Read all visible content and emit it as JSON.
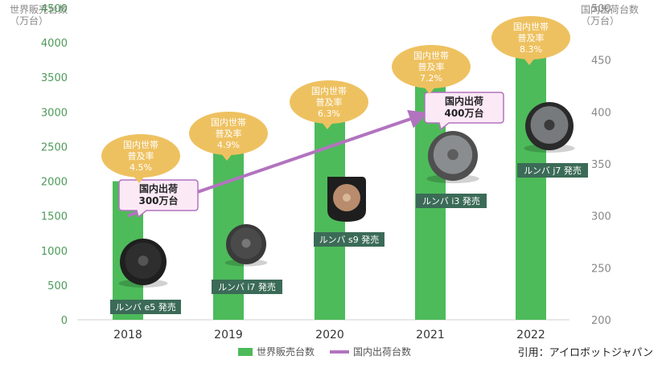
{
  "chart_data": {
    "type": "bar",
    "y_left_title": [
      "世界販売台数",
      "（万台）"
    ],
    "y_right_title": [
      "国内出荷台数",
      "（万台）"
    ],
    "categories": [
      "2018",
      "2019",
      "2020",
      "2021",
      "2022"
    ],
    "series": [
      {
        "name": "世界販売台数",
        "axis": "left",
        "type": "bar",
        "values": [
          2000,
          2500,
          3000,
          3500,
          4000
        ]
      }
    ],
    "line_points": [
      {
        "category": "2018",
        "value": 300
      },
      {
        "category": "2021",
        "value": 400
      }
    ],
    "line_series_name": "国内出荷台数",
    "ylim_left": [
      0,
      4500
    ],
    "yticks_left": [
      "0",
      "500",
      "1000",
      "1500",
      "2000",
      "2500",
      "3000",
      "3500",
      "4000",
      "4500"
    ],
    "ylim_right": [
      200,
      500
    ],
    "yticks_right": [
      "200",
      "250",
      "300",
      "350",
      "400",
      "450",
      "500"
    ],
    "grid": false,
    "legend_position": "bottom",
    "callouts": [
      {
        "category": "2018",
        "lines": [
          "国内世帯",
          "普及率",
          "4.5%"
        ]
      },
      {
        "category": "2019",
        "lines": [
          "国内世帯",
          "普及率",
          "4.9%"
        ]
      },
      {
        "category": "2020",
        "lines": [
          "国内世帯",
          "普及率",
          "6.3%"
        ]
      },
      {
        "category": "2021",
        "lines": [
          "国内世帯",
          "普及率",
          "7.2%"
        ]
      },
      {
        "category": "2022",
        "lines": [
          "国内世帯",
          "普及率",
          "8.3%"
        ]
      }
    ],
    "shipment_labels": [
      {
        "category": "2018",
        "lines": [
          "国内出荷",
          "300万台"
        ]
      },
      {
        "category": "2021",
        "lines": [
          "国内出荷",
          "400万台"
        ]
      }
    ],
    "product_labels": [
      {
        "category": "2018",
        "text": "ルンバ e5 発売"
      },
      {
        "category": "2019",
        "text": "ルンバ i7 発売"
      },
      {
        "category": "2020",
        "text": "ルンバ s9 発売"
      },
      {
        "category": "2021",
        "text": "ルンバ i3 発売"
      },
      {
        "category": "2022",
        "text": "ルンバ j7 発売"
      }
    ],
    "colors": {
      "bar": "#4dbb5a",
      "line": "#b273bf",
      "callout": "#eec160",
      "label_box": "#3b6b57",
      "tick_left": "#4d9a59",
      "tick_right": "#888888"
    }
  },
  "source_note": "引用：アイロボットジャパン"
}
